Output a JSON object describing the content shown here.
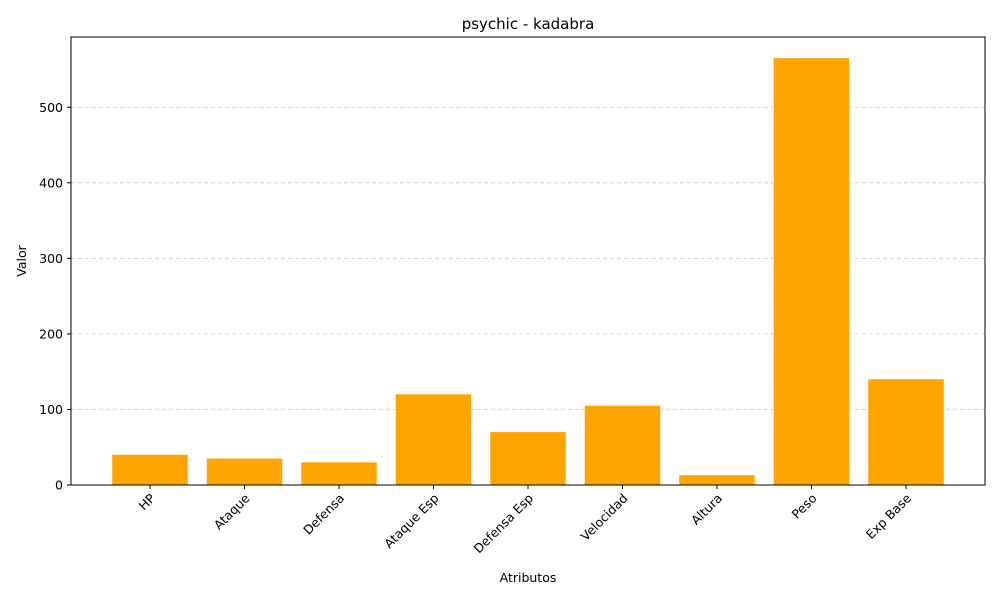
{
  "chart_data": {
    "type": "bar",
    "title": "psychic - kadabra",
    "xlabel": "Atributos",
    "ylabel": "Valor",
    "categories": [
      "HP",
      "Ataque",
      "Defensa",
      "Ataque Esp",
      "Defensa Esp",
      "Velocidad",
      "Altura",
      "Peso",
      "Exp Base"
    ],
    "values": [
      40,
      35,
      30,
      120,
      70,
      105,
      13,
      565,
      140
    ],
    "ylim": [
      0,
      593
    ],
    "yticks": [
      0,
      100,
      200,
      300,
      400,
      500
    ],
    "grid": "y-dashed",
    "bar_color": "#ffa500",
    "tick_rotation_deg": -45
  }
}
